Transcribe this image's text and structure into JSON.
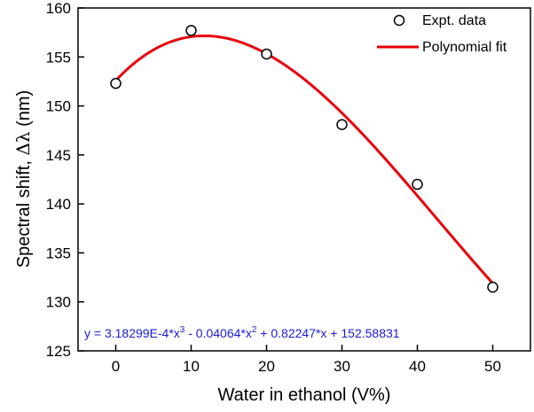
{
  "chart_data": {
    "type": "scatter",
    "title": "",
    "xlabel": "Water in ethanol (V%)",
    "ylabel_main": "Spectral shift, ",
    "ylabel_symbol": "Δλ",
    "ylabel_unit": " (nm)",
    "xlim": [
      -5,
      55
    ],
    "ylim": [
      125,
      160
    ],
    "x_ticks": [
      0,
      10,
      20,
      30,
      40,
      50
    ],
    "y_ticks": [
      125,
      130,
      135,
      140,
      145,
      150,
      155,
      160
    ],
    "legend_position": "top-right",
    "grid": false,
    "series": [
      {
        "name": "Expt. data",
        "kind": "scatter",
        "marker": "open-circle",
        "color": "#000000",
        "points": [
          [
            0,
            152.3
          ],
          [
            10,
            157.7
          ],
          [
            20,
            155.3
          ],
          [
            30,
            148.1
          ],
          [
            40,
            142.0
          ],
          [
            50,
            131.5
          ]
        ]
      },
      {
        "name": "Polynomial fit",
        "kind": "line",
        "color": "#e8000b",
        "equation": {
          "a3": 0.000318299,
          "a2": -0.04064,
          "a1": 0.82247,
          "a0": 152.58831,
          "x_range": [
            0,
            50
          ]
        }
      }
    ],
    "annotation": {
      "parts": [
        "y = 3.18299E-4*x",
        "3",
        " - 0.04064*x",
        "2",
        " + 0.82247*x + 152.58831"
      ],
      "color": "#1a1adb"
    }
  }
}
